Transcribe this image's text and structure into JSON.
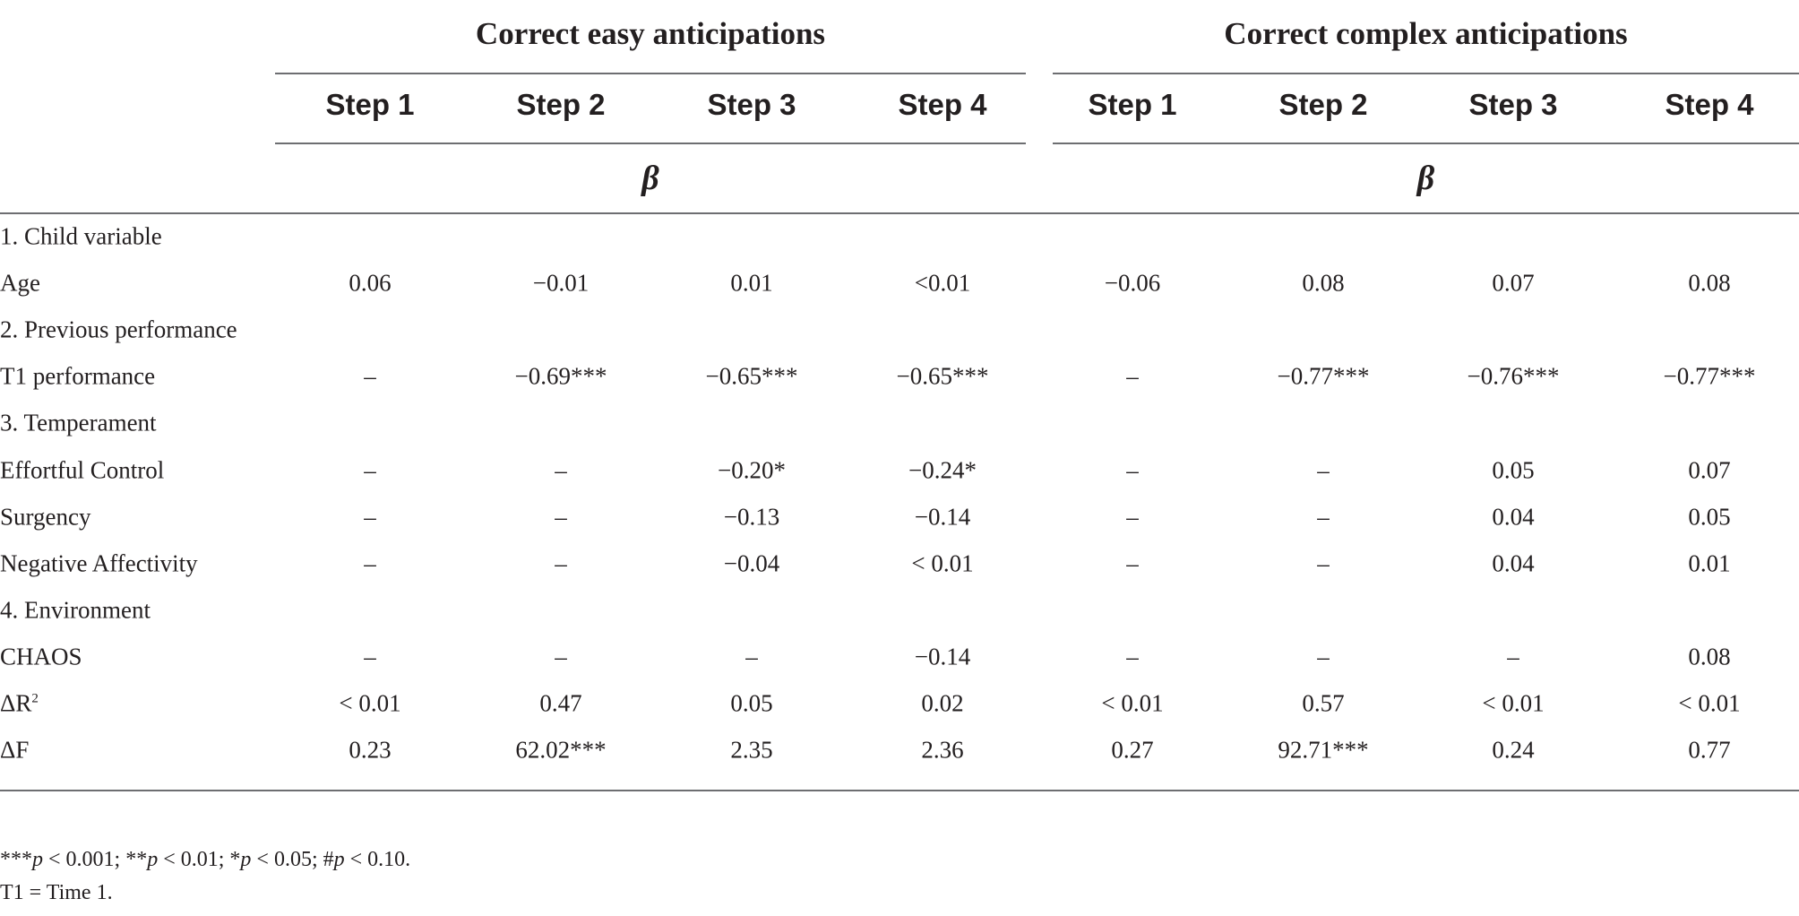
{
  "groups": [
    {
      "title": "Correct easy anticipations",
      "steps": [
        "Step 1",
        "Step 2",
        "Step 3",
        "Step 4"
      ],
      "coef_label": "β"
    },
    {
      "title": "Correct complex anticipations",
      "steps": [
        "Step 1",
        "Step 2",
        "Step 3",
        "Step 4"
      ],
      "coef_label": "β"
    }
  ],
  "rows": [
    {
      "label": "1. Child variable",
      "section": true,
      "values": []
    },
    {
      "label": "Age",
      "section": false,
      "values": [
        "0.06",
        "−0.01",
        "0.01",
        "<0.01",
        "−0.06",
        "0.08",
        "0.07",
        "0.08"
      ]
    },
    {
      "label": "2. Previous performance",
      "section": true,
      "values": []
    },
    {
      "label": "T1 performance",
      "section": false,
      "values": [
        "–",
        "−0.69***",
        "−0.65***",
        "−0.65***",
        "–",
        "−0.77***",
        "−0.76***",
        "−0.77***"
      ]
    },
    {
      "label": "3. Temperament",
      "section": true,
      "values": []
    },
    {
      "label": "Effortful Control",
      "section": false,
      "values": [
        "–",
        "–",
        "−0.20*",
        "−0.24*",
        "–",
        "–",
        "0.05",
        "0.07"
      ]
    },
    {
      "label": "Surgency",
      "section": false,
      "values": [
        "–",
        "–",
        "−0.13",
        "−0.14",
        "–",
        "–",
        "0.04",
        "0.05"
      ]
    },
    {
      "label": "Negative Affectivity",
      "section": false,
      "values": [
        "–",
        "–",
        "−0.04",
        "< 0.01",
        "–",
        "–",
        "0.04",
        "0.01"
      ]
    },
    {
      "label": "4. Environment",
      "section": true,
      "values": []
    },
    {
      "label": "CHAOS",
      "section": false,
      "values": [
        "–",
        "–",
        "–",
        "−0.14",
        "–",
        "–",
        "–",
        "0.08"
      ]
    },
    {
      "label": "ΔR",
      "label_sup": "2",
      "section": false,
      "values": [
        "< 0.01",
        "0.47",
        "0.05",
        "0.02",
        "< 0.01",
        "0.57",
        "< 0.01",
        "< 0.01"
      ]
    },
    {
      "label": "ΔF",
      "section": false,
      "values": [
        "0.23",
        "62.02***",
        "2.35",
        "2.36",
        "0.27",
        "92.71***",
        "0.24",
        "0.77"
      ]
    }
  ],
  "footnotes": {
    "significance": [
      {
        "prefix": "***",
        "var": "p",
        "text": " < 0.001; "
      },
      {
        "prefix": "**",
        "var": "p",
        "text": " < 0.01; "
      },
      {
        "prefix": "*",
        "var": "p",
        "text": " < 0.05; "
      },
      {
        "prefix": "#",
        "var": "p",
        "text": " < 0.10."
      }
    ],
    "abbreviation": "T1 = Time 1."
  }
}
